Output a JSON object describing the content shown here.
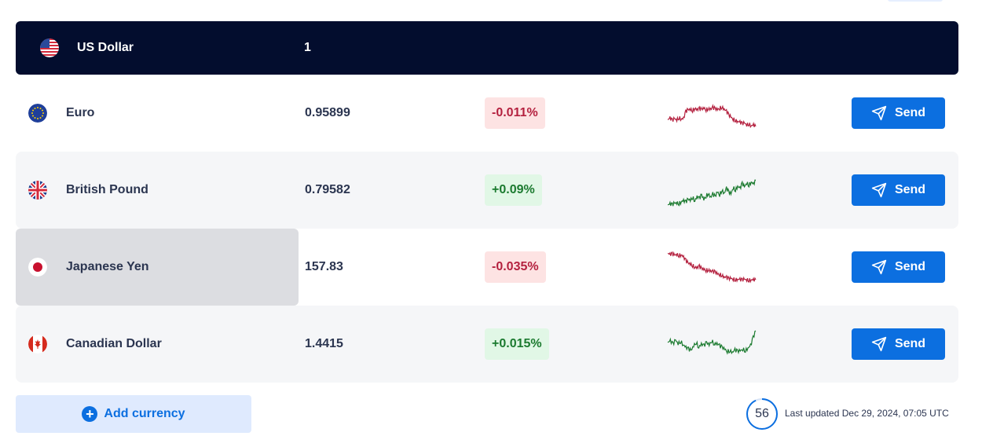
{
  "base": {
    "currency": "US Dollar",
    "amount": "1",
    "flag_icon": "us-flag-icon"
  },
  "rows": [
    {
      "currency": "Euro",
      "rate": "0.95899",
      "change": "-0.011%",
      "trend": "negative",
      "flag_icon": "eu-flag-icon",
      "send_label": "Send",
      "sparkline": [
        0.3,
        0.35,
        0.28,
        0.33,
        0.3,
        0.36,
        0.32,
        0.34,
        0.55,
        0.6,
        0.62,
        0.58,
        0.65,
        0.6,
        0.63,
        0.61,
        0.66,
        0.6,
        0.64,
        0.62,
        0.67,
        0.63,
        0.61,
        0.65,
        0.68,
        0.62,
        0.55,
        0.45,
        0.38,
        0.32,
        0.28,
        0.25,
        0.22,
        0.18,
        0.2,
        0.15,
        0.17,
        0.12,
        0.14,
        0.1
      ]
    },
    {
      "currency": "British Pound",
      "rate": "0.79582",
      "change": "+0.09%",
      "trend": "positive",
      "flag_icon": "uk-flag-icon",
      "send_label": "Send",
      "sparkline": [
        0.05,
        0.08,
        0.06,
        0.1,
        0.12,
        0.09,
        0.15,
        0.18,
        0.14,
        0.22,
        0.2,
        0.28,
        0.18,
        0.3,
        0.25,
        0.35,
        0.22,
        0.32,
        0.4,
        0.28,
        0.38,
        0.3,
        0.45,
        0.36,
        0.5,
        0.4,
        0.55,
        0.45,
        0.38,
        0.58,
        0.5,
        0.62,
        0.55,
        0.7,
        0.6,
        0.72,
        0.65,
        0.75,
        0.68,
        0.8
      ]
    },
    {
      "currency": "Japanese Yen",
      "rate": "157.83",
      "change": "-0.035%",
      "trend": "negative",
      "flag_icon": "jp-flag-icon",
      "send_label": "Send",
      "sparkline": [
        0.92,
        0.88,
        0.9,
        0.86,
        0.89,
        0.85,
        0.88,
        0.8,
        0.7,
        0.62,
        0.6,
        0.55,
        0.5,
        0.48,
        0.52,
        0.45,
        0.44,
        0.4,
        0.42,
        0.38,
        0.36,
        0.35,
        0.3,
        0.28,
        0.25,
        0.2,
        0.18,
        0.15,
        0.16,
        0.14,
        0.12,
        0.13,
        0.12,
        0.11,
        0.13,
        0.12,
        0.1,
        0.12,
        0.11,
        0.12
      ]
    },
    {
      "currency": "Canadian Dollar",
      "rate": "1.4415",
      "change": "+0.015%",
      "trend": "positive",
      "flag_icon": "ca-flag-icon",
      "send_label": "Send",
      "sparkline": [
        0.55,
        0.6,
        0.5,
        0.62,
        0.52,
        0.58,
        0.48,
        0.4,
        0.35,
        0.3,
        0.45,
        0.55,
        0.4,
        0.5,
        0.45,
        0.55,
        0.48,
        0.6,
        0.5,
        0.52,
        0.45,
        0.4,
        0.35,
        0.28,
        0.3,
        0.25,
        0.32,
        0.28,
        0.3,
        0.35,
        0.3,
        0.38,
        0.45,
        0.7,
        0.9
      ]
    }
  ],
  "add_currency_label": "Add currency",
  "countdown": "56",
  "countdown_progress": 0.93,
  "last_updated": "Last updated Dec 29, 2024, 07:05 UTC",
  "colors": {
    "header_bg": "#030d2e",
    "accent": "#0c6fe0",
    "negative": "#b4213f",
    "positive": "#1b7a2f"
  }
}
